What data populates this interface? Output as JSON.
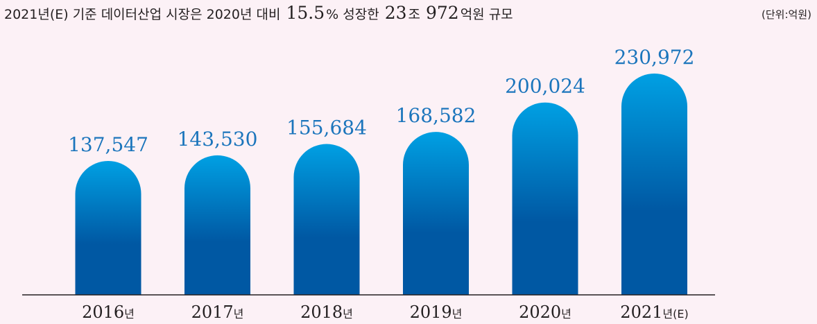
{
  "header": {
    "part1": "2021년(E) 기준 데이터산업 시장은 2020년 대비",
    "pct": "15.5",
    "pct_unit": "% 성장한",
    "amount1": "23",
    "amount1_unit": "조",
    "amount2": "972",
    "amount2_unit": "억원 규모"
  },
  "unit_label": "(단위:억원)",
  "colors": {
    "background": "#fcf1f6",
    "bar_top": "#00a0e3",
    "bar_bottom": "#0058a3",
    "value_text": "#1b75bc",
    "axis": "#231f20"
  },
  "chart_data": {
    "type": "bar",
    "categories": [
      "2016",
      "2017",
      "2018",
      "2019",
      "2020",
      "2021"
    ],
    "category_suffixes": [
      "년",
      "년",
      "년",
      "년",
      "년",
      "년(E)"
    ],
    "values": [
      137547,
      143530,
      155684,
      168582,
      200024,
      230972
    ],
    "value_labels": [
      "137,547",
      "143,530",
      "155,684",
      "168,582",
      "200,024",
      "230,972"
    ],
    "title": "2021년(E) 기준 데이터산업 시장은 2020년 대비 15.5% 성장한 23조 972억원 규모",
    "unit": "(단위:억원)",
    "ylim": [
      0,
      250000
    ],
    "grid": false,
    "legend": "none"
  }
}
